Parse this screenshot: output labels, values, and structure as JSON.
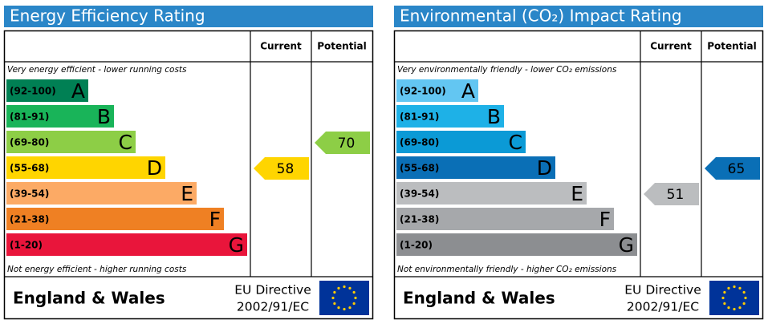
{
  "chart_data": [
    {
      "type": "rating",
      "title": "Energy Efficiency Rating",
      "columns": [
        "Current",
        "Potential"
      ],
      "top_note": "Very energy efficient - lower running costs",
      "bottom_note": "Not energy efficient - higher running costs",
      "categories": [
        "(92-100)",
        "(81-91)",
        "(69-80)",
        "(55-68)",
        "(39-54)",
        "(21-38)",
        "(1-20)"
      ],
      "letters": [
        "A",
        "B",
        "C",
        "D",
        "E",
        "F",
        "G"
      ],
      "colors": [
        "#008054",
        "#19b459",
        "#8dce46",
        "#ffd500",
        "#fcaa65",
        "#ef8023",
        "#e9153b"
      ],
      "current": 58,
      "potential": 70,
      "footer": {
        "region": "England & Wales",
        "directive": "EU Directive",
        "code": "2002/91/EC"
      }
    },
    {
      "type": "rating",
      "title": "Environmental (CO₂) Impact Rating",
      "columns": [
        "Current",
        "Potential"
      ],
      "top_note": "Very environmentally friendly - lower CO₂ emissions",
      "bottom_note": "Not environmentally friendly - higher CO₂ emissions",
      "categories": [
        "(92-100)",
        "(81-91)",
        "(69-80)",
        "(55-68)",
        "(39-54)",
        "(21-38)",
        "(1-20)"
      ],
      "letters": [
        "A",
        "B",
        "C",
        "D",
        "E",
        "F",
        "G"
      ],
      "colors": [
        "#63c6f2",
        "#1eb1e7",
        "#0b9ad6",
        "#0a6fb6",
        "#bbbdbf",
        "#a6a8ab",
        "#8c8e91"
      ],
      "current": 51,
      "potential": 65,
      "footer": {
        "region": "England & Wales",
        "directive": "EU Directive",
        "code": "2002/91/EC"
      }
    }
  ]
}
